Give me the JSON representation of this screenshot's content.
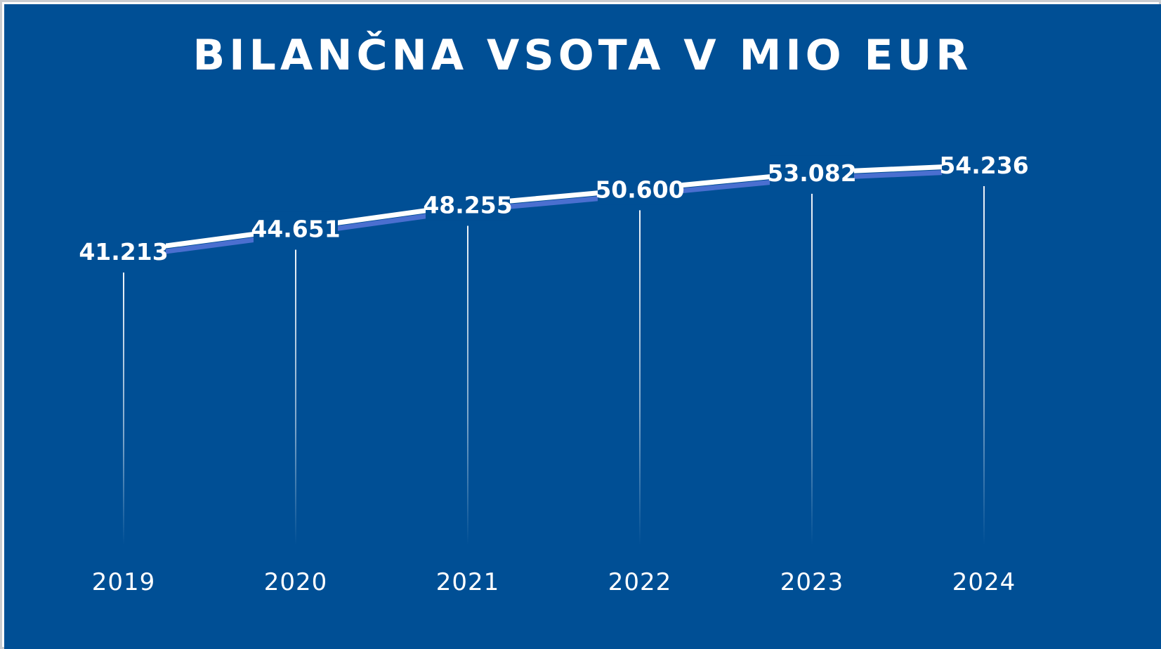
{
  "chart_data": {
    "type": "line",
    "title": "BILANČNA VSOTA V MIO EUR",
    "categories": [
      "2019",
      "2020",
      "2021",
      "2022",
      "2023",
      "2024"
    ],
    "values": [
      41213,
      44651,
      48255,
      50600,
      53082,
      54236
    ],
    "value_labels": [
      "41.213",
      "44.651",
      "48.255",
      "50.600",
      "53.082",
      "54.236"
    ],
    "xlabel": "",
    "ylabel": "",
    "grid": false,
    "legend": "none",
    "drop_lines": true
  },
  "colors": {
    "background": "#004f95",
    "line": "#ffffff",
    "line_shadow": "#4a6fd0",
    "text": "#ffffff"
  }
}
